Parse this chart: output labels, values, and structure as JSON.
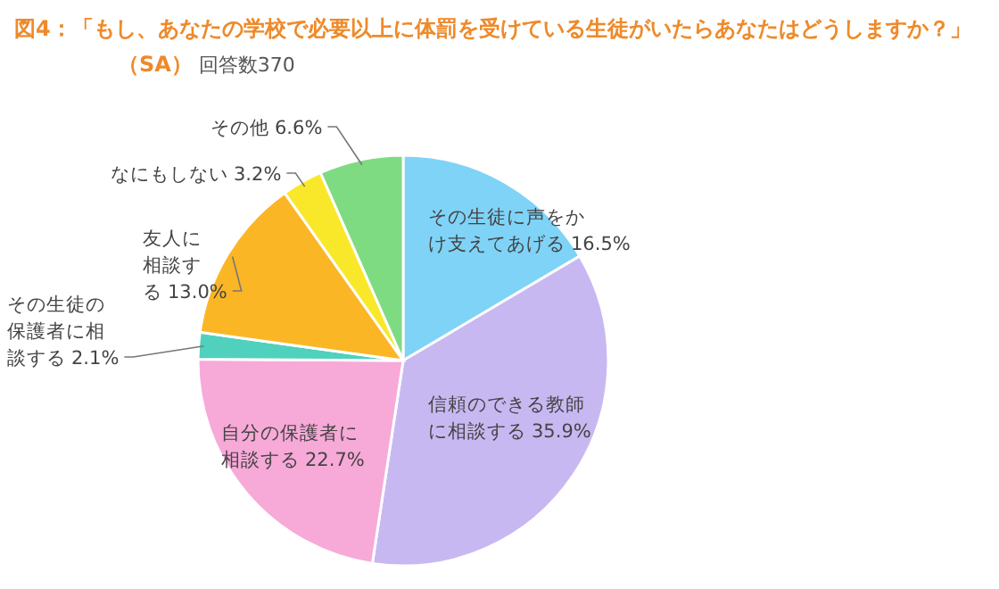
{
  "chart_data": {
    "type": "pie",
    "title": "図4：「もし、あなたの学校で必要以上に体罰を受けている生徒がいたらあなたはどうしますか？」（SA）",
    "annotations": [
      "回答数370"
    ],
    "categories": [
      "その生徒に声をかけ支えてあげる",
      "信頼のできる教師に相談する",
      "自分の保護者に相談する",
      "その生徒の保護者に相談する",
      "友人に相談する",
      "なにもしない",
      "その他"
    ],
    "values": [
      16.5,
      35.9,
      22.7,
      2.1,
      13.0,
      3.2,
      6.6
    ],
    "value_labels": [
      "16.5%",
      "35.9%",
      "22.7%",
      "2.1%",
      "13.0%",
      "3.2%",
      "6.6%"
    ],
    "colors": [
      "#7fd3f7",
      "#c8b8f2",
      "#f7a9d8",
      "#4fd1bd",
      "#fbb626",
      "#f9e82a",
      "#7edb82"
    ],
    "legend": false
  }
}
